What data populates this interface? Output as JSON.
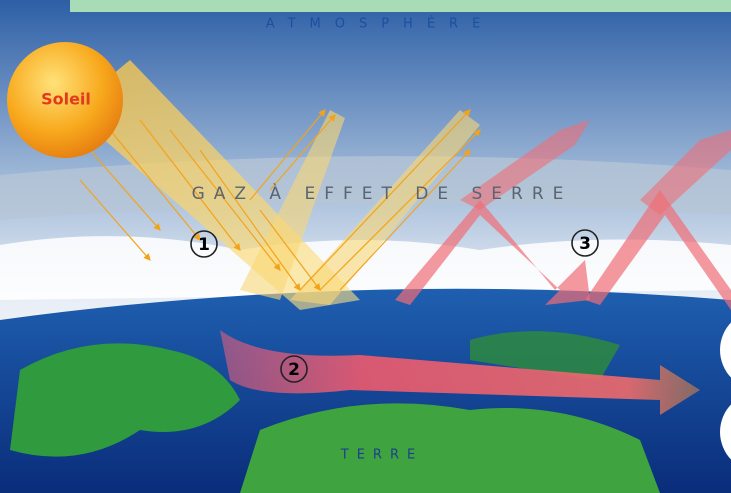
{
  "labels": {
    "atmosphere": "ATMOSPHÈRE",
    "sun": "Soleil",
    "gas": "GAZ À EFFET DE SERRE",
    "earth": "TERRE"
  },
  "steps": [
    "1",
    "2",
    "3"
  ]
}
